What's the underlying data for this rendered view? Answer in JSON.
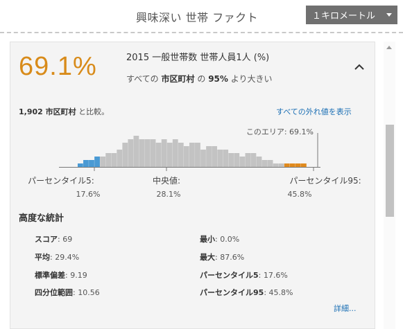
{
  "header": {
    "title": "興味深い 世帯 ファクト",
    "distance_button": "１キロメートル"
  },
  "fact": {
    "value_text": "69.1%",
    "title": "2015 一般世帯数 世帯人員1人 (%)",
    "sub_prefix": "すべての",
    "sub_bold1": "市区町村",
    "sub_middle": "の",
    "sub_bold2": "95%",
    "sub_suffix": "より大きい"
  },
  "compare": {
    "count_bold": "1,902 市区町村",
    "suffix": "と比較。",
    "outlier_link": "すべての外れ値を表示"
  },
  "chart_data": {
    "type": "bar",
    "bin_heights": [
      1,
      2,
      2,
      3,
      3,
      4,
      4,
      5,
      7,
      8,
      9,
      8,
      8,
      8,
      7,
      8,
      7,
      8,
      7,
      6,
      7,
      7,
      5,
      6,
      6,
      5,
      5,
      4,
      4,
      3,
      4,
      4,
      3,
      2,
      2,
      1,
      1,
      1,
      1,
      1,
      1
    ],
    "bin_colors": [
      "#4a9ad4",
      "#4a9ad4",
      "#4a9ad4",
      "#4a9ad4",
      "#c3c3c3",
      "#c3c3c3",
      "#c3c3c3",
      "#c3c3c3",
      "#c3c3c3",
      "#c3c3c3",
      "#c3c3c3",
      "#c3c3c3",
      "#c3c3c3",
      "#c3c3c3",
      "#c3c3c3",
      "#c3c3c3",
      "#c3c3c3",
      "#c3c3c3",
      "#c3c3c3",
      "#c3c3c3",
      "#c3c3c3",
      "#c3c3c3",
      "#c3c3c3",
      "#c3c3c3",
      "#c3c3c3",
      "#c3c3c3",
      "#c3c3c3",
      "#c3c3c3",
      "#c3c3c3",
      "#c3c3c3",
      "#c3c3c3",
      "#c3c3c3",
      "#c3c3c3",
      "#c3c3c3",
      "#c3c3c3",
      "#c3c3c3",
      "#c3c3c3",
      "#e08a1e",
      "#e08a1e",
      "#e08a1e",
      "#e08a1e"
    ],
    "this_area_label": "このエリア: 69.1%",
    "this_area_value": 69.1,
    "markers": [
      {
        "label": "パーセンタイル5:",
        "value_text": "17.6%",
        "value": 17.6
      },
      {
        "label": "中央値:",
        "value_text": "28.1%",
        "value": 28.1
      },
      {
        "label": "パーセンタイル95:",
        "value_text": "45.8%",
        "value": 45.8
      }
    ]
  },
  "stats": {
    "heading": "高度な統計",
    "items": [
      {
        "label": "スコア",
        "value": "69"
      },
      {
        "label": "最小",
        "value": "0.0%"
      },
      {
        "label": "平均",
        "value": "29.4%"
      },
      {
        "label": "最大",
        "value": "87.6%"
      },
      {
        "label": "標準偏差",
        "value": "9.19"
      },
      {
        "label": "パーセンタイル5",
        "value": "17.6%"
      },
      {
        "label": "四分位範囲",
        "value": "10.56"
      },
      {
        "label": "パーセンタイル95",
        "value": "45.8%"
      }
    ],
    "more_link": "詳細..."
  },
  "colors": {
    "accent": "#d88b1a",
    "link": "#1b6fb4",
    "low_bins": "#4a9ad4",
    "high_bins": "#e08a1e",
    "mid_bins": "#c3c3c3"
  }
}
